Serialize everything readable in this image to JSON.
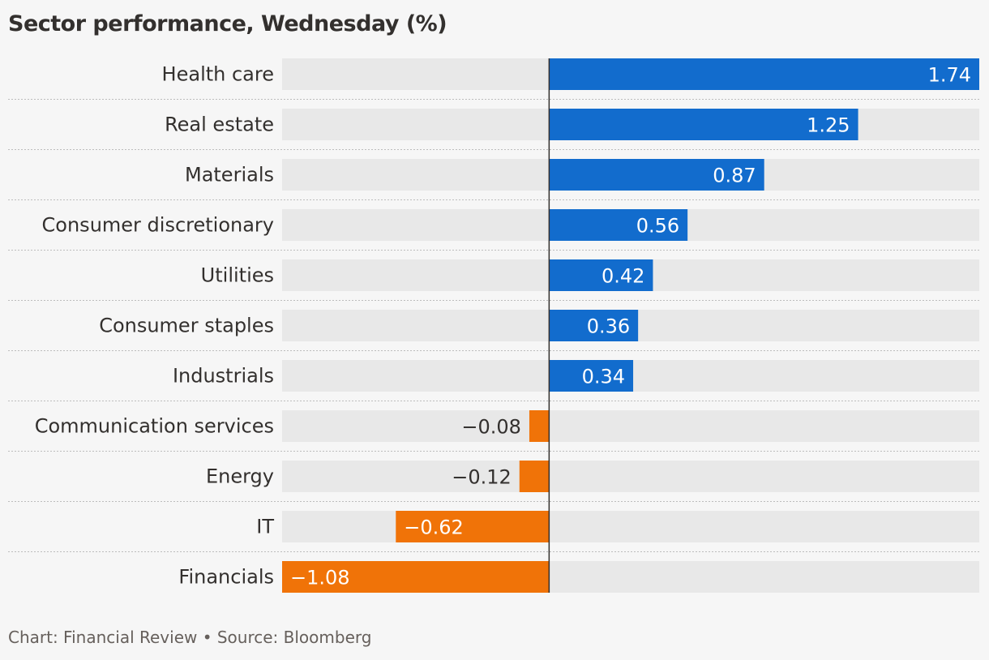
{
  "chart_data": {
    "type": "bar",
    "orientation": "horizontal",
    "title": "Sector performance, Wednesday (%)",
    "categories": [
      "Health care",
      "Real estate",
      "Materials",
      "Consumer discretionary",
      "Utilities",
      "Consumer staples",
      "Industrials",
      "Communication services",
      "Energy",
      "IT",
      "Financials"
    ],
    "values": [
      1.74,
      1.25,
      0.87,
      0.56,
      0.42,
      0.36,
      0.34,
      -0.08,
      -0.12,
      -0.62,
      -1.08
    ],
    "value_labels": [
      "1.74",
      "1.25",
      "0.87",
      "0.56",
      "0.42",
      "0.36",
      "0.34",
      "−0.08",
      "−0.12",
      "−0.62",
      "−1.08"
    ],
    "xlim": [
      -1.08,
      1.74
    ],
    "grid": false,
    "legend": "none",
    "colors": {
      "positive": "#126ccd",
      "negative": "#f07308",
      "track": "#e8e8e8",
      "baseline": "#33302e"
    }
  },
  "footer": {
    "text": "Chart: Financial Review • Source: Bloomberg"
  }
}
